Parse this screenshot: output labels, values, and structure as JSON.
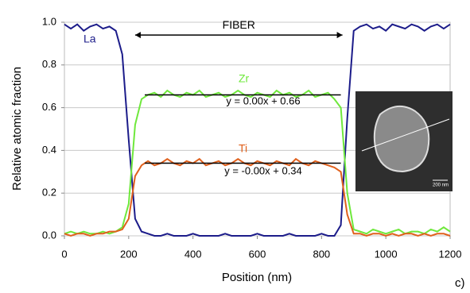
{
  "chart_data": {
    "type": "line",
    "x_label": "Position (nm)",
    "y_label": "Relative atomic fraction",
    "xlim": [
      0,
      1200
    ],
    "xticks": [
      0,
      200,
      400,
      600,
      800,
      1000,
      1200
    ],
    "ylim": [
      0,
      1
    ],
    "yticks": [
      {
        "value": 0,
        "label": "0.0"
      },
      {
        "value": 0.2,
        "label": "0.2"
      },
      {
        "value": 0.4,
        "label": "0.4"
      },
      {
        "value": 0.6,
        "label": "0.6"
      },
      {
        "value": 0.8,
        "label": "0.8"
      },
      {
        "value": 1,
        "label": "1.0"
      }
    ],
    "grid": true,
    "x": [
      0,
      20,
      40,
      60,
      80,
      100,
      120,
      140,
      160,
      180,
      200,
      220,
      240,
      260,
      280,
      300,
      320,
      340,
      360,
      380,
      400,
      420,
      440,
      460,
      480,
      500,
      520,
      540,
      560,
      580,
      600,
      620,
      640,
      660,
      680,
      700,
      720,
      740,
      760,
      780,
      800,
      820,
      840,
      860,
      880,
      900,
      920,
      940,
      960,
      980,
      1000,
      1020,
      1040,
      1060,
      1080,
      1100,
      1120,
      1140,
      1160,
      1180,
      1200
    ],
    "series": [
      {
        "name": "La",
        "color": "#1c1c8a",
        "values": [
          0.99,
          0.97,
          0.99,
          0.96,
          0.98,
          0.99,
          0.97,
          0.98,
          0.96,
          0.85,
          0.45,
          0.08,
          0.02,
          0.01,
          0,
          0,
          0.01,
          0,
          0,
          0,
          0.01,
          0,
          0,
          0,
          0,
          0.01,
          0,
          0,
          0,
          0,
          0.01,
          0,
          0,
          0,
          0,
          0.01,
          0,
          0,
          0,
          0,
          0.01,
          0,
          0,
          0.05,
          0.55,
          0.96,
          0.98,
          0.99,
          0.97,
          0.98,
          0.96,
          0.99,
          0.98,
          0.97,
          0.99,
          0.98,
          0.96,
          0.98,
          0.99,
          0.97,
          0.99
        ]
      },
      {
        "name": "Zr",
        "color": "#6fe83c",
        "values": [
          0.01,
          0.02,
          0.01,
          0.02,
          0.01,
          0.01,
          0.02,
          0.01,
          0.02,
          0.04,
          0.15,
          0.52,
          0.64,
          0.66,
          0.67,
          0.65,
          0.68,
          0.66,
          0.65,
          0.67,
          0.66,
          0.68,
          0.65,
          0.66,
          0.67,
          0.65,
          0.66,
          0.68,
          0.66,
          0.65,
          0.67,
          0.66,
          0.65,
          0.68,
          0.66,
          0.67,
          0.65,
          0.66,
          0.68,
          0.65,
          0.66,
          0.67,
          0.64,
          0.6,
          0.2,
          0.03,
          0.02,
          0.01,
          0.03,
          0.02,
          0.01,
          0.02,
          0.03,
          0.01,
          0.02,
          0.02,
          0.01,
          0.03,
          0.02,
          0.04,
          0.02
        ]
      },
      {
        "name": "Ti",
        "color": "#e0601c",
        "values": [
          0.01,
          0,
          0.01,
          0.01,
          0,
          0.01,
          0.01,
          0.02,
          0.02,
          0.03,
          0.08,
          0.28,
          0.33,
          0.35,
          0.33,
          0.34,
          0.36,
          0.34,
          0.33,
          0.35,
          0.34,
          0.36,
          0.33,
          0.34,
          0.35,
          0.33,
          0.34,
          0.36,
          0.34,
          0.33,
          0.35,
          0.34,
          0.33,
          0.35,
          0.34,
          0.33,
          0.36,
          0.34,
          0.33,
          0.35,
          0.34,
          0.33,
          0.32,
          0.3,
          0.1,
          0.01,
          0.01,
          0,
          0.01,
          0.01,
          0,
          0.01,
          0,
          0.01,
          0.01,
          0,
          0.01,
          0,
          0.01,
          0.01,
          0
        ]
      }
    ],
    "trendlines": [
      {
        "label": "y = 0.00x + 0.66",
        "x": [
          250,
          860
        ],
        "y": [
          0.66,
          0.66
        ]
      },
      {
        "label": "y = -0.00x + 0.34",
        "x": [
          250,
          860
        ],
        "y": [
          0.34,
          0.34
        ]
      }
    ],
    "fiber": {
      "label": "FIBER",
      "x": [
        220,
        865
      ],
      "y": 0.94
    },
    "panel_label": "c)",
    "inset_scale": "200 nm"
  }
}
